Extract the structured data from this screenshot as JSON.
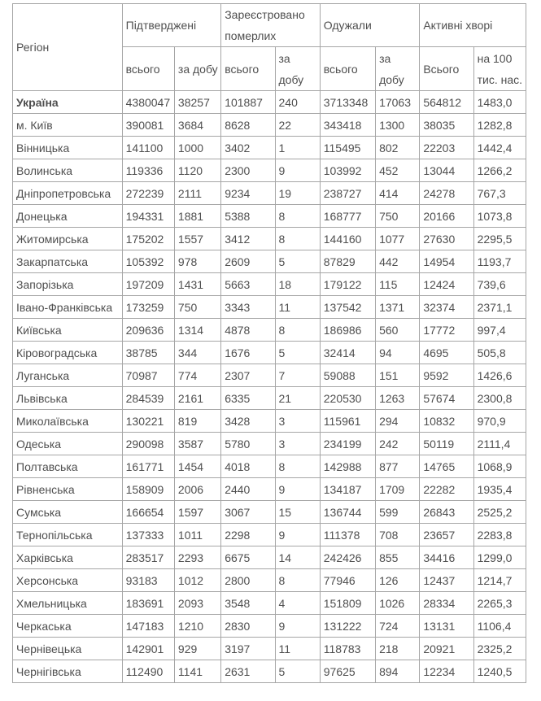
{
  "chart_data": {
    "type": "table",
    "header": {
      "region": "Регіон",
      "groups": [
        {
          "label": "Підтверджені",
          "subs": [
            "всього",
            "за добу"
          ]
        },
        {
          "label": "Зареєстровано померлих",
          "subs": [
            "всього",
            "за добу"
          ]
        },
        {
          "label": "Одужали",
          "subs": [
            "всього",
            "за добу"
          ]
        },
        {
          "label": "Активні хворі",
          "subs": [
            "Всього",
            "на 100 тис. нас."
          ]
        }
      ]
    },
    "rows": [
      {
        "region": "Україна",
        "bold": true,
        "values": [
          "4380047",
          "38257",
          "101887",
          "240",
          "3713348",
          "17063",
          "564812",
          "1483,0"
        ]
      },
      {
        "region": "м. Київ",
        "bold": false,
        "values": [
          "390081",
          "3684",
          "8628",
          "22",
          "343418",
          "1300",
          "38035",
          "1282,8"
        ]
      },
      {
        "region": "Вінницька",
        "bold": false,
        "values": [
          "141100",
          "1000",
          "3402",
          "1",
          "115495",
          "802",
          "22203",
          "1442,4"
        ]
      },
      {
        "region": "Волинська",
        "bold": false,
        "values": [
          "119336",
          "1120",
          "2300",
          "9",
          "103992",
          "452",
          "13044",
          "1266,2"
        ]
      },
      {
        "region": "Дніпропетровська",
        "bold": false,
        "values": [
          "272239",
          "2111",
          "9234",
          "19",
          "238727",
          "414",
          "24278",
          "767,3"
        ]
      },
      {
        "region": "Донецька",
        "bold": false,
        "values": [
          "194331",
          "1881",
          "5388",
          "8",
          "168777",
          "750",
          "20166",
          "1073,8"
        ]
      },
      {
        "region": "Житомирська",
        "bold": false,
        "values": [
          "175202",
          "1557",
          "3412",
          "8",
          "144160",
          "1077",
          "27630",
          "2295,5"
        ]
      },
      {
        "region": "Закарпатська",
        "bold": false,
        "values": [
          "105392",
          "978",
          "2609",
          "5",
          "87829",
          "442",
          "14954",
          "1193,7"
        ]
      },
      {
        "region": "Запорізька",
        "bold": false,
        "values": [
          "197209",
          "1431",
          "5663",
          "18",
          "179122",
          "115",
          "12424",
          "739,6"
        ]
      },
      {
        "region": "Івано-Франківська",
        "bold": false,
        "values": [
          "173259",
          "750",
          "3343",
          "11",
          "137542",
          "1371",
          "32374",
          "2371,1"
        ]
      },
      {
        "region": "Київська",
        "bold": false,
        "values": [
          "209636",
          "1314",
          "4878",
          "8",
          "186986",
          "560",
          "17772",
          "997,4"
        ]
      },
      {
        "region": "Кіровоградська",
        "bold": false,
        "values": [
          "38785",
          "344",
          "1676",
          "5",
          "32414",
          "94",
          "4695",
          "505,8"
        ]
      },
      {
        "region": "Луганська",
        "bold": false,
        "values": [
          "70987",
          "774",
          "2307",
          "7",
          "59088",
          "151",
          "9592",
          "1426,6"
        ]
      },
      {
        "region": "Львівська",
        "bold": false,
        "values": [
          "284539",
          "2161",
          "6335",
          "21",
          "220530",
          "1263",
          "57674",
          "2300,8"
        ]
      },
      {
        "region": "Миколаївська",
        "bold": false,
        "values": [
          "130221",
          "819",
          "3428",
          "3",
          "115961",
          "294",
          "10832",
          "970,9"
        ]
      },
      {
        "region": "Одеська",
        "bold": false,
        "values": [
          "290098",
          "3587",
          "5780",
          "3",
          "234199",
          "242",
          "50119",
          "2111,4"
        ]
      },
      {
        "region": "Полтавська",
        "bold": false,
        "values": [
          "161771",
          "1454",
          "4018",
          "8",
          "142988",
          "877",
          "14765",
          "1068,9"
        ]
      },
      {
        "region": "Рівненська",
        "bold": false,
        "values": [
          "158909",
          "2006",
          "2440",
          "9",
          "134187",
          "1709",
          "22282",
          "1935,4"
        ]
      },
      {
        "region": "Сумська",
        "bold": false,
        "values": [
          "166654",
          "1597",
          "3067",
          "15",
          "136744",
          "599",
          "26843",
          "2525,2"
        ]
      },
      {
        "region": "Тернопільська",
        "bold": false,
        "values": [
          "137333",
          "1011",
          "2298",
          "9",
          "111378",
          "708",
          "23657",
          "2283,8"
        ]
      },
      {
        "region": "Харківська",
        "bold": false,
        "values": [
          "283517",
          "2293",
          "6675",
          "14",
          "242426",
          "855",
          "34416",
          "1299,0"
        ]
      },
      {
        "region": "Херсонська",
        "bold": false,
        "values": [
          "93183",
          "1012",
          "2800",
          "8",
          "77946",
          "126",
          "12437",
          "1214,7"
        ]
      },
      {
        "region": "Хмельницька",
        "bold": false,
        "values": [
          "183691",
          "2093",
          "3548",
          "4",
          "151809",
          "1026",
          "28334",
          "2265,3"
        ]
      },
      {
        "region": "Черкаська",
        "bold": false,
        "values": [
          "147183",
          "1210",
          "2830",
          "9",
          "131222",
          "724",
          "13131",
          "1106,4"
        ]
      },
      {
        "region": "Чернівецька",
        "bold": false,
        "values": [
          "142901",
          "929",
          "3197",
          "11",
          "118783",
          "218",
          "20921",
          "2325,2"
        ]
      },
      {
        "region": "Чернігівська",
        "bold": false,
        "values": [
          "112490",
          "1141",
          "2631",
          "5",
          "97625",
          "894",
          "12234",
          "1240,5"
        ]
      }
    ],
    "style": {
      "text_color": "#4f4f4f",
      "inner_border_color": "#a6a6a6",
      "outer_border_color": "#8c8c8c",
      "background": "#ffffff"
    }
  }
}
